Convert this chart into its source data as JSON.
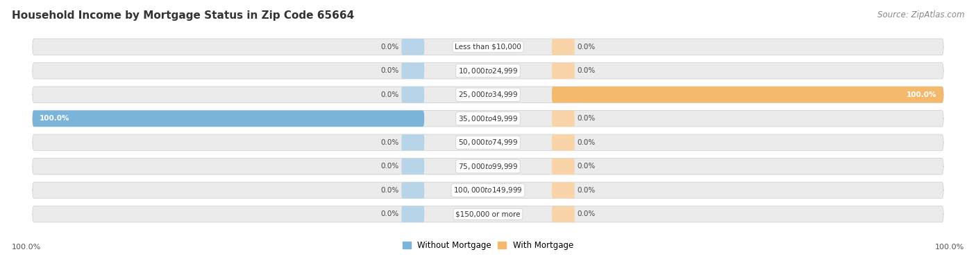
{
  "title": "Household Income by Mortgage Status in Zip Code 65664",
  "source": "Source: ZipAtlas.com",
  "categories": [
    "Less than $10,000",
    "$10,000 to $24,999",
    "$25,000 to $34,999",
    "$35,000 to $49,999",
    "$50,000 to $74,999",
    "$75,000 to $99,999",
    "$100,000 to $149,999",
    "$150,000 or more"
  ],
  "without_mortgage": [
    0.0,
    0.0,
    0.0,
    100.0,
    0.0,
    0.0,
    0.0,
    0.0
  ],
  "with_mortgage": [
    0.0,
    0.0,
    100.0,
    0.0,
    0.0,
    0.0,
    0.0,
    0.0
  ],
  "color_without": "#7ab4d8",
  "color_without_light": "#b8d4e8",
  "color_with": "#f5b96e",
  "color_with_light": "#f9d4a8",
  "bg_row_color": "#e8e8e8",
  "bg_row_alt": "#efefef",
  "axis_label_left": "100.0%",
  "axis_label_right": "100.0%",
  "title_fontsize": 11,
  "source_fontsize": 8.5,
  "stub_size": 5.0,
  "xlim_left": -100,
  "xlim_right": 100
}
